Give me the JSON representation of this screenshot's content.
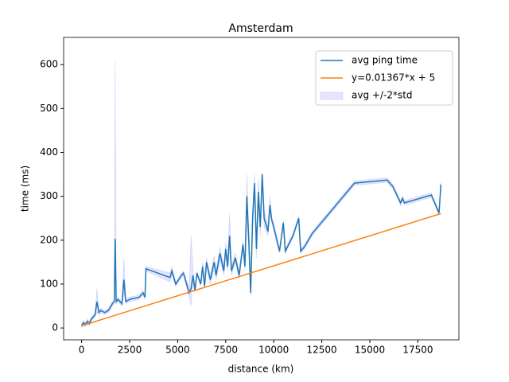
{
  "chart_data": {
    "type": "line",
    "title": "Amsterdam",
    "x_label": "distance (km)",
    "y_label": "time (ms)",
    "x": [
      0,
      100,
      200,
      300,
      400,
      500,
      600,
      700,
      800,
      900,
      1000,
      1200,
      1400,
      1600,
      1700,
      1750,
      1800,
      1900,
      2100,
      2200,
      2300,
      2500,
      3000,
      3200,
      3300,
      3350,
      4600,
      4700,
      4900,
      5200,
      5300,
      5600,
      5700,
      5800,
      5900,
      6000,
      6200,
      6300,
      6400,
      6500,
      6700,
      6900,
      7000,
      7200,
      7400,
      7500,
      7600,
      7700,
      7800,
      8000,
      8200,
      8400,
      8500,
      8600,
      8700,
      8800,
      8900,
      9000,
      9100,
      9200,
      9300,
      9400,
      9500,
      9700,
      9800,
      9900,
      10000,
      10300,
      10500,
      10600,
      11000,
      11300,
      11400,
      11600,
      12000,
      14200,
      15900,
      16200,
      16600,
      16700,
      16800,
      18200,
      18600,
      18700
    ],
    "series": [
      {
        "name": "avg ping time",
        "color": "#1f77b4",
        "values": [
          5,
          12,
          8,
          15,
          10,
          20,
          25,
          30,
          60,
          35,
          40,
          35,
          40,
          55,
          60,
          203,
          60,
          65,
          55,
          110,
          60,
          65,
          70,
          80,
          70,
          135,
          115,
          130,
          100,
          120,
          125,
          80,
          90,
          120,
          85,
          125,
          100,
          140,
          95,
          150,
          110,
          150,
          120,
          170,
          130,
          180,
          140,
          210,
          130,
          160,
          120,
          190,
          140,
          300,
          200,
          80,
          250,
          330,
          180,
          310,
          230,
          350,
          250,
          220,
          280,
          245,
          230,
          175,
          240,
          175,
          210,
          250,
          175,
          185,
          215,
          330,
          337,
          322,
          285,
          295,
          285,
          303,
          262,
          327
        ]
      },
      {
        "name": "y=0.01367*x + 5",
        "color": "#ff7f0e",
        "x": [
          0,
          18700
        ],
        "values": [
          5,
          260.6
        ]
      },
      {
        "name": "avg +/-2*std",
        "color": "#0000ff",
        "upper": [
          10,
          17,
          13,
          20,
          15,
          25,
          30,
          35,
          90,
          40,
          45,
          40,
          45,
          60,
          65,
          610,
          65,
          70,
          60,
          160,
          65,
          70,
          75,
          85,
          75,
          140,
          125,
          140,
          105,
          125,
          130,
          90,
          210,
          130,
          90,
          130,
          105,
          150,
          100,
          160,
          120,
          165,
          130,
          185,
          140,
          195,
          150,
          260,
          140,
          170,
          130,
          200,
          150,
          350,
          220,
          90,
          270,
          350,
          200,
          340,
          250,
          355,
          270,
          230,
          300,
          250,
          240,
          180,
          245,
          180,
          215,
          255,
          180,
          190,
          220,
          335,
          342,
          327,
          290,
          300,
          290,
          308,
          267,
          332
        ],
        "lower": [
          0,
          7,
          3,
          10,
          5,
          15,
          20,
          25,
          35,
          30,
          35,
          30,
          35,
          50,
          55,
          190,
          55,
          60,
          50,
          80,
          55,
          60,
          65,
          75,
          65,
          130,
          105,
          120,
          95,
          115,
          120,
          70,
          50,
          110,
          80,
          120,
          95,
          130,
          90,
          140,
          100,
          135,
          110,
          155,
          120,
          165,
          130,
          180,
          120,
          150,
          110,
          180,
          130,
          250,
          180,
          70,
          230,
          310,
          160,
          280,
          210,
          345,
          230,
          210,
          260,
          240,
          220,
          170,
          235,
          170,
          205,
          245,
          170,
          180,
          210,
          325,
          332,
          317,
          280,
          290,
          280,
          298,
          257,
          322
        ]
      }
    ],
    "xlim": [
      -935,
      19635
    ],
    "ylim": [
      -27,
      662
    ],
    "xticks": [
      0,
      2500,
      5000,
      7500,
      10000,
      12500,
      15000,
      17500
    ],
    "yticks": [
      0,
      100,
      200,
      300,
      400,
      500,
      600
    ],
    "legend": "upper right"
  }
}
